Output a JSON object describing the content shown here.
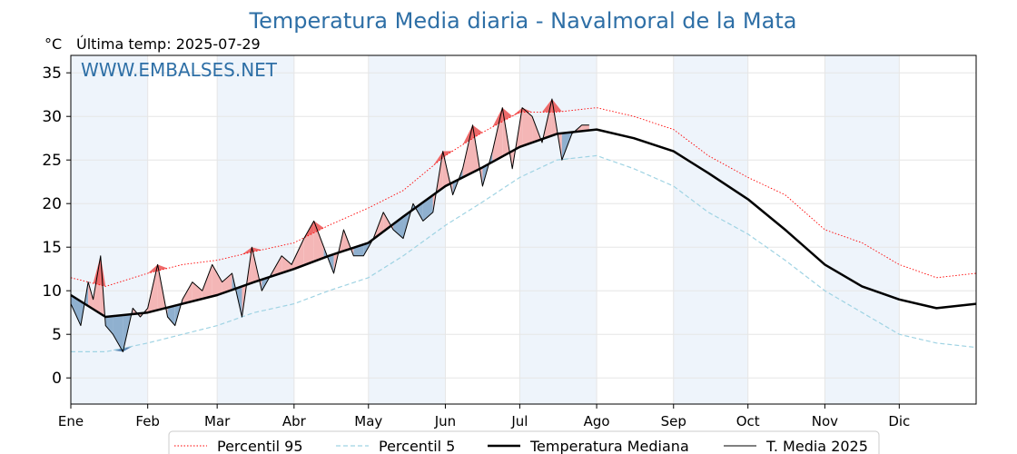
{
  "title": "Temperatura Media diaria - Navalmoral de la Mata",
  "unit_label": "°C",
  "last_temp_label": "Última temp: 2025-07-29",
  "watermark": "WWW.EMBALSES.NET",
  "colors": {
    "title": "#2e6fa6",
    "p95": "#ff0000",
    "p5": "#9fd3e3",
    "median": "#000000",
    "current": "#000000",
    "above_fill": "#f4b6b6",
    "above_p95_fill": "#ee6a6a",
    "below_fill": "#8fb0cf",
    "below_p5_fill": "#5a86b3",
    "month_band": "#eef4fb"
  },
  "chart_data": {
    "type": "line",
    "title": "Temperatura Media diaria - Navalmoral de la Mata",
    "ylabel": "°C",
    "xlabel": "",
    "ylim": [
      -3,
      37
    ],
    "yticks": [
      0,
      5,
      10,
      15,
      20,
      25,
      30,
      35
    ],
    "x_months": [
      "Ene",
      "Feb",
      "Mar",
      "Abr",
      "May",
      "Jun",
      "Jul",
      "Ago",
      "Sep",
      "Oct",
      "Nov",
      "Dic"
    ],
    "month_start_days": [
      1,
      32,
      60,
      91,
      121,
      152,
      182,
      213,
      244,
      274,
      305,
      335
    ],
    "xlim_days": [
      1,
      366
    ],
    "grid": true,
    "legend_placement": "bottom",
    "series": [
      {
        "name": "Percentil 95",
        "style": "dotted",
        "days": [
          1,
          15,
          32,
          46,
          60,
          75,
          91,
          105,
          121,
          135,
          152,
          166,
          182,
          197,
          213,
          228,
          244,
          258,
          274,
          289,
          305,
          320,
          335,
          350,
          366
        ],
        "values": [
          11.5,
          10.5,
          12,
          13,
          13.5,
          14.5,
          15.5,
          17.5,
          19.5,
          21.5,
          25.5,
          28,
          30.5,
          30.5,
          31,
          30,
          28.5,
          25.5,
          23,
          21,
          17,
          15.5,
          13,
          11.5,
          12
        ]
      },
      {
        "name": "Percentil 5",
        "style": "dashed",
        "days": [
          1,
          15,
          32,
          46,
          60,
          75,
          91,
          105,
          121,
          135,
          152,
          166,
          182,
          197,
          213,
          228,
          244,
          258,
          274,
          289,
          305,
          320,
          335,
          350,
          366
        ],
        "values": [
          3,
          3,
          4,
          5,
          6,
          7.5,
          8.5,
          10,
          11.5,
          14,
          17.5,
          20,
          23,
          25,
          25.5,
          24,
          22,
          19,
          16.5,
          13.5,
          10,
          7.5,
          5,
          4,
          3.5
        ]
      },
      {
        "name": "Temperatura Mediana",
        "style": "solid-thick",
        "days": [
          1,
          15,
          32,
          46,
          60,
          75,
          91,
          105,
          121,
          135,
          152,
          166,
          182,
          197,
          213,
          228,
          244,
          258,
          274,
          289,
          305,
          320,
          335,
          350,
          366
        ],
        "values": [
          9.5,
          7,
          7.5,
          8.5,
          9.5,
          11,
          12.5,
          14,
          15.5,
          18.5,
          22,
          24,
          26.5,
          28,
          28.5,
          27.5,
          26,
          23.5,
          20.5,
          17,
          13,
          10.5,
          9,
          8,
          8.5
        ]
      },
      {
        "name": "T. Media 2025",
        "style": "solid-thin",
        "days": [
          1,
          5,
          8,
          10,
          13,
          15,
          18,
          22,
          26,
          29,
          32,
          36,
          40,
          43,
          46,
          50,
          54,
          58,
          62,
          66,
          70,
          74,
          78,
          82,
          86,
          90,
          95,
          99,
          103,
          107,
          111,
          115,
          119,
          123,
          127,
          131,
          135,
          139,
          143,
          147,
          151,
          155,
          159,
          163,
          167,
          171,
          175,
          179,
          183,
          187,
          191,
          195,
          199,
          203,
          207,
          210
        ],
        "values": [
          8.5,
          6,
          11,
          9,
          14,
          6,
          5,
          3,
          8,
          7,
          8,
          13,
          7,
          6,
          9,
          11,
          10,
          13,
          11,
          12,
          7,
          15,
          10,
          12,
          14,
          13,
          16,
          18,
          15,
          12,
          17,
          14,
          14,
          16,
          19,
          17,
          16,
          20,
          18,
          19,
          26,
          21,
          24,
          29,
          22,
          26,
          31,
          24,
          31,
          30,
          27,
          32,
          25,
          28,
          29,
          29
        ]
      }
    ]
  },
  "legend": [
    {
      "label": "Percentil 95",
      "style": "dotted"
    },
    {
      "label": "Percentil 5",
      "style": "dashed"
    },
    {
      "label": "Temperatura Mediana",
      "style": "solid-thick"
    },
    {
      "label": "T. Media 2025",
      "style": "solid-thin"
    }
  ]
}
